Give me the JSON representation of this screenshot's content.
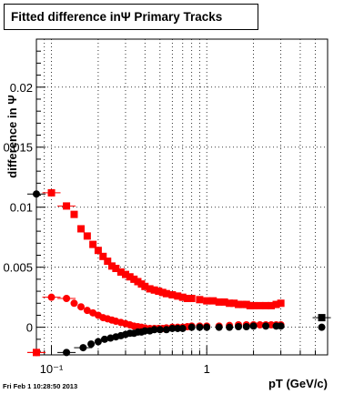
{
  "chart_data": {
    "type": "scatter",
    "title": "Fitted difference inΨ   Primary Tracks",
    "xlabel": "pT (GeV/c)",
    "ylabel": "difference in Ψ",
    "xscale": "log",
    "xlim": [
      0.08,
      6.0
    ],
    "ylim": [
      -0.0023,
      0.024
    ],
    "grid": true,
    "legend": "none",
    "x_tick_labels": [
      "10⁻¹",
      "1"
    ],
    "y_tick_labels": [
      "0",
      "0.005",
      "0.01",
      "0.015",
      "0.02"
    ],
    "series": [
      {
        "marker": "square",
        "color": "#ff0000",
        "x": [
          0.08,
          0.1,
          0.125,
          0.14,
          0.155,
          0.17,
          0.185,
          0.2,
          0.215,
          0.23,
          0.245,
          0.26,
          0.28,
          0.3,
          0.32,
          0.34,
          0.36,
          0.38,
          0.4,
          0.43,
          0.46,
          0.49,
          0.52,
          0.55,
          0.6,
          0.65,
          0.7,
          0.75,
          0.8,
          0.9,
          1.0,
          1.1,
          1.2,
          1.3,
          1.4,
          1.5,
          1.6,
          1.7,
          1.8,
          1.9,
          2.0,
          2.2,
          2.4,
          2.6,
          2.8,
          3.0
        ],
        "y": [
          -0.0021,
          0.0112,
          0.0101,
          0.0094,
          0.0082,
          0.0076,
          0.0069,
          0.0064,
          0.0059,
          0.0055,
          0.0051,
          0.0049,
          0.0046,
          0.0044,
          0.0042,
          0.004,
          0.0038,
          0.0036,
          0.0034,
          0.0032,
          0.0031,
          0.003,
          0.0029,
          0.0028,
          0.0027,
          0.0026,
          0.0025,
          0.0024,
          0.0024,
          0.0023,
          0.0022,
          0.0022,
          0.0021,
          0.0021,
          0.002,
          0.002,
          0.0019,
          0.0019,
          0.0019,
          0.0018,
          0.0018,
          0.0018,
          0.0018,
          0.0018,
          0.0019,
          0.002
        ]
      },
      {
        "marker": "square",
        "color": "#000000",
        "x": [
          5.5
        ],
        "y": [
          0.0008
        ]
      },
      {
        "marker": "circle",
        "color": "#ff0000",
        "x": [
          0.08,
          0.1,
          0.125,
          0.14,
          0.155,
          0.17,
          0.185,
          0.2,
          0.215,
          0.23,
          0.245,
          0.26,
          0.28,
          0.3,
          0.32,
          0.34,
          0.36,
          0.38,
          0.4,
          0.43,
          0.46,
          0.49,
          0.52,
          0.55,
          0.6,
          0.65,
          0.7,
          0.75,
          0.8,
          0.9,
          1.0,
          1.2,
          1.4,
          1.6,
          1.8,
          2.0,
          2.2,
          2.4,
          2.6,
          2.8,
          3.0
        ],
        "y": [
          -0.0021,
          0.0025,
          0.0024,
          0.002,
          0.0017,
          0.0014,
          0.0012,
          0.001,
          0.0008,
          0.0007,
          0.0006,
          0.0005,
          0.0004,
          0.0003,
          0.0002,
          0.0001,
          5e-05,
          0.0,
          -5e-05,
          -0.0001,
          -0.0001,
          -0.0001,
          -0.0001,
          -5e-05,
          0.0,
          0.0,
          0.0,
          5e-05,
          0.0001,
          0.0001,
          0.0001,
          0.0001,
          0.00015,
          0.0002,
          0.0002,
          0.0002,
          0.0002,
          0.0002,
          0.0002,
          0.0002,
          0.0002
        ]
      },
      {
        "marker": "circle",
        "color": "#000000",
        "x": [
          0.08,
          0.125,
          0.16,
          0.18,
          0.2,
          0.22,
          0.24,
          0.26,
          0.28,
          0.3,
          0.32,
          0.34,
          0.36,
          0.38,
          0.4,
          0.43,
          0.46,
          0.5,
          0.55,
          0.6,
          0.65,
          0.7,
          0.8,
          0.9,
          1.0,
          1.2,
          1.4,
          1.6,
          1.8,
          2.0,
          2.4,
          2.8,
          3.0,
          5.5
        ],
        "y": [
          0.0111,
          -0.0021,
          -0.0017,
          -0.0014,
          -0.0012,
          -0.001,
          -0.0009,
          -0.0008,
          -0.0007,
          -0.0006,
          -0.0005,
          -0.0005,
          -0.0004,
          -0.0004,
          -0.0003,
          -0.0003,
          -0.0002,
          -0.0002,
          -0.0002,
          -0.0001,
          -0.0001,
          -0.0001,
          0.0,
          0.0,
          0.0,
          0.0,
          0.0,
          5e-05,
          5e-05,
          0.0001,
          0.0001,
          0.0001,
          0.0001,
          0.0
        ]
      }
    ]
  },
  "footer": "Fri Feb  1 10:28:50 2013"
}
